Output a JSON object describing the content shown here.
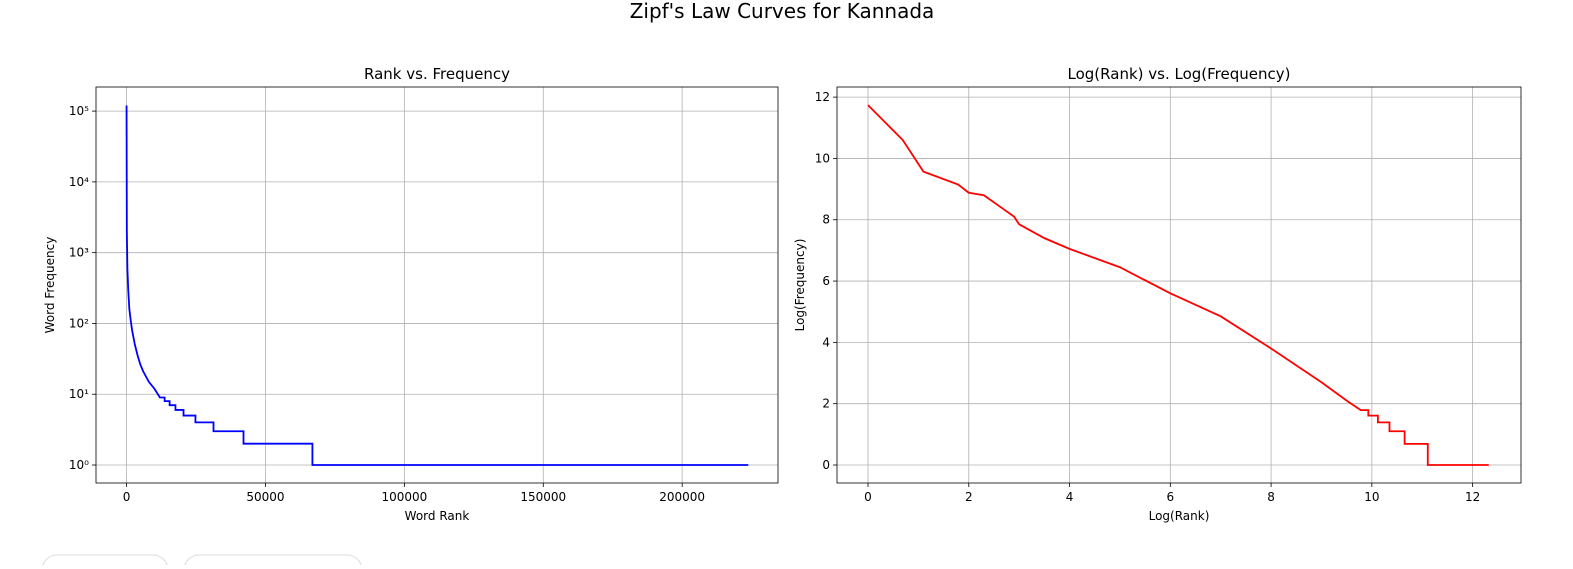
{
  "title": "Zipf's Law Curves for Kannada",
  "chart_data": [
    {
      "type": "line",
      "title": "Rank vs. Frequency",
      "xlabel": "Word Rank",
      "ylabel": "Word Frequency",
      "yscale": "log",
      "grid": true,
      "color": "#0000ff",
      "x": [
        1,
        100,
        300,
        600,
        1000,
        1500,
        2000,
        3000,
        4000,
        5000,
        6000,
        8000,
        10000,
        12000,
        13700,
        13700,
        15500,
        15500,
        17600,
        17600,
        20500,
        20500,
        24800,
        24800,
        31300,
        31300,
        42100,
        42100,
        66900,
        66900,
        223800
      ],
      "values": [
        120000,
        2000,
        600,
        300,
        160,
        110,
        80,
        50,
        35,
        26,
        21,
        15,
        12,
        9,
        9,
        8,
        8,
        7,
        7,
        6,
        6,
        5,
        5,
        4,
        4,
        3,
        3,
        2,
        2,
        1,
        1
      ],
      "xlim": [
        -11000,
        234500
      ],
      "xticks": [
        0,
        50000,
        100000,
        150000,
        200000
      ],
      "ylim": [
        0.557,
        219000
      ],
      "yticks": [
        {
          "value": 1,
          "label": "10⁰"
        },
        {
          "value": 10,
          "label": "10¹"
        },
        {
          "value": 100,
          "label": "10²"
        },
        {
          "value": 1000,
          "label": "10³"
        },
        {
          "value": 10000,
          "label": "10⁴"
        },
        {
          "value": 100000,
          "label": "10⁵"
        }
      ]
    },
    {
      "type": "line",
      "title": "Log(Rank) vs. Log(Frequency)",
      "xlabel": "Log(Rank)",
      "ylabel": "Log(Frequency)",
      "grid": true,
      "color": "#ff0000",
      "x": [
        0,
        0.69,
        1.1,
        1.79,
        2.0,
        2.3,
        2.6,
        2.9,
        3.0,
        3.5,
        4,
        5,
        6,
        7,
        8,
        9,
        9.5,
        9.78,
        9.93,
        9.93,
        10.12,
        10.12,
        10.35,
        10.35,
        10.65,
        10.65,
        11.11,
        11.11,
        12.32
      ],
      "values": [
        11.74,
        10.6,
        9.57,
        9.15,
        8.88,
        8.8,
        8.45,
        8.1,
        7.85,
        7.4,
        7.05,
        6.45,
        5.6,
        4.85,
        3.8,
        2.7,
        2.1,
        1.79,
        1.79,
        1.61,
        1.61,
        1.39,
        1.39,
        1.1,
        1.1,
        0.69,
        0.69,
        0,
        0
      ],
      "xlim": [
        -0.615,
        12.96
      ],
      "xticks": [
        0,
        2,
        4,
        6,
        8,
        10,
        12
      ],
      "ylim": [
        -0.587,
        12.33
      ],
      "yticks": [
        0,
        2,
        4,
        6,
        8,
        10,
        12
      ]
    }
  ]
}
